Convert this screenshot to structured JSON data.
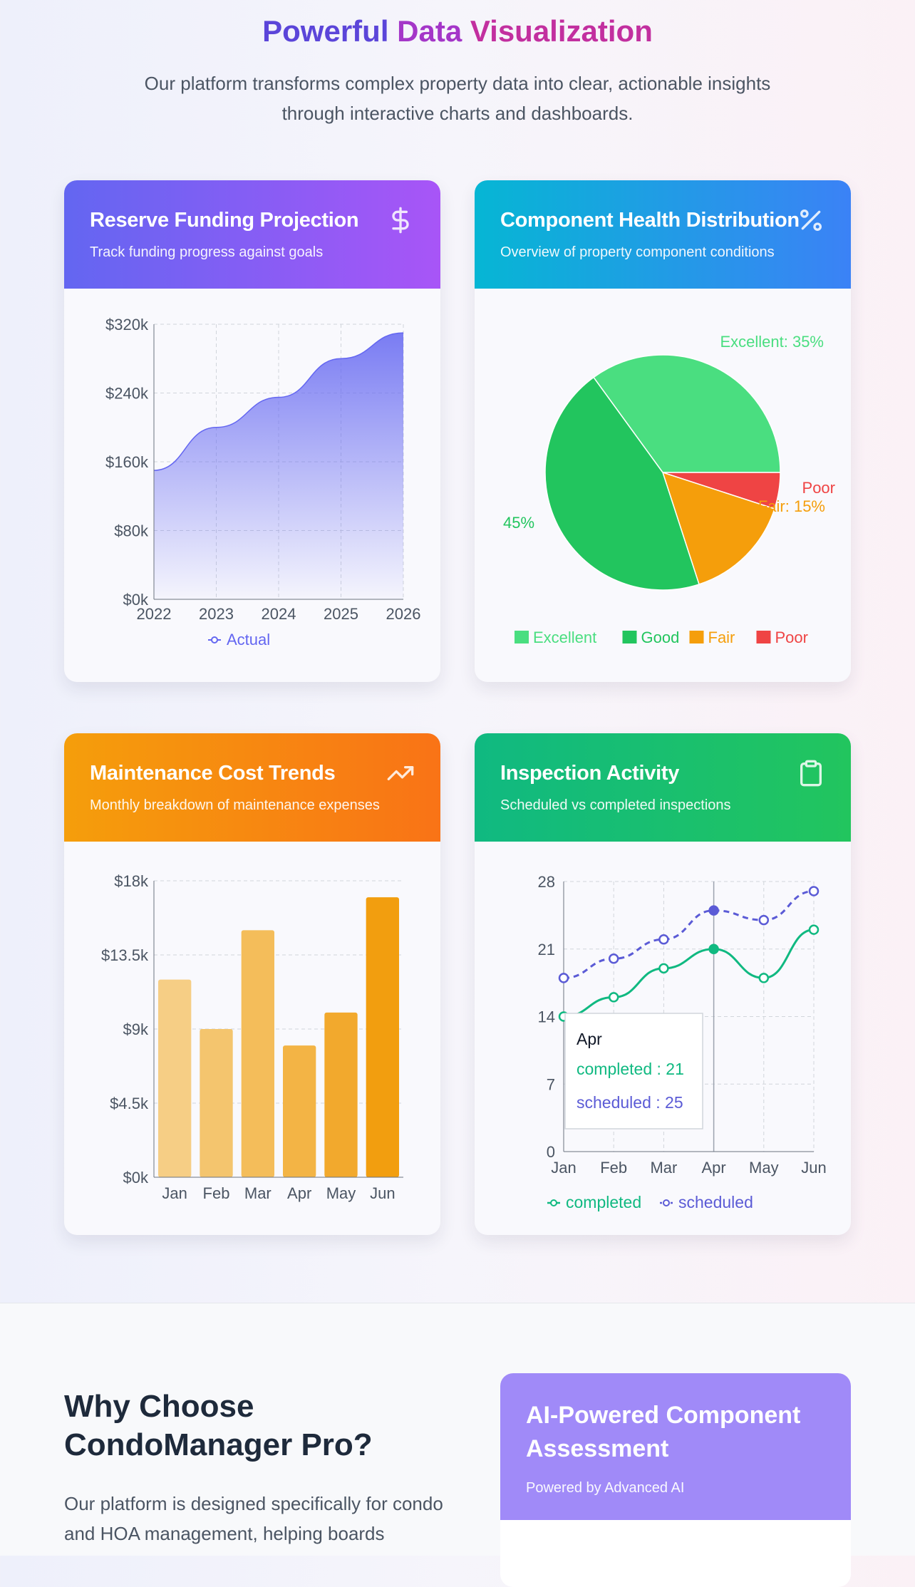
{
  "hero": {
    "title_part1": "Powerful",
    "title_part2": "Data",
    "title_part3": "Visualization",
    "intro": "Our platform transforms complex property data into clear, actionable insights through interactive charts and dashboards."
  },
  "cards": {
    "reserve": {
      "title": "Reserve Funding Projection",
      "subtitle": "Track funding progress against goals",
      "icon": "dollar-icon"
    },
    "health": {
      "title": "Component Health Distribution",
      "subtitle": "Overview of property component conditions",
      "icon": "percent-icon"
    },
    "maintenance": {
      "title": "Maintenance Cost Trends",
      "subtitle": "Monthly breakdown of maintenance expenses",
      "icon": "trending-up-icon"
    },
    "inspection": {
      "title": "Inspection Activity",
      "subtitle": "Scheduled vs completed inspections",
      "icon": "clipboard-icon"
    }
  },
  "chart_data": [
    {
      "type": "area",
      "title": "Reserve Funding Projection",
      "x": [
        "2022",
        "2023",
        "2024",
        "2025",
        "2026"
      ],
      "y_ticks": [
        "$0k",
        "$80k",
        "$160k",
        "$240k",
        "$320k"
      ],
      "ylim": [
        0,
        320
      ],
      "grid": true,
      "legend": "bottom",
      "series": [
        {
          "name": "Actual",
          "values": [
            150,
            200,
            235,
            280,
            310
          ]
        }
      ],
      "color": "#6366f1"
    },
    {
      "type": "pie",
      "title": "Component Health Distribution",
      "slices": [
        {
          "name": "Excellent",
          "value": 35,
          "label": "Excellent: 35%",
          "color": "#4ade80"
        },
        {
          "name": "Poor",
          "value": 5,
          "label": "Poor",
          "color": "#ef4444"
        },
        {
          "name": "Fair",
          "value": 15,
          "label": "Fair: 15%",
          "color": "#f59e0b"
        },
        {
          "name": "Good",
          "value": 45,
          "label": "45%",
          "color": "#22c55e"
        }
      ],
      "legend": [
        "Excellent",
        "Good",
        "Fair",
        "Poor"
      ],
      "legend_placement": "bottom"
    },
    {
      "type": "bar",
      "title": "Maintenance Cost Trends",
      "categories": [
        "Jan",
        "Feb",
        "Mar",
        "Apr",
        "May",
        "Jun"
      ],
      "values": [
        12000,
        9000,
        15000,
        8000,
        10000,
        17000
      ],
      "y_ticks": [
        "$0k",
        "$4.5k",
        "$9k",
        "$13.5k",
        "$18k"
      ],
      "ylim": [
        0,
        18000
      ],
      "grid": true,
      "colors": [
        "#f6ce85",
        "#f4c56e",
        "#f4bd5a",
        "#f3b445",
        "#f2a92d",
        "#f29e0f"
      ]
    },
    {
      "type": "line",
      "title": "Inspection Activity",
      "categories": [
        "Jan",
        "Feb",
        "Mar",
        "Apr",
        "May",
        "Jun"
      ],
      "y_ticks": [
        "0",
        "7",
        "14",
        "21",
        "28"
      ],
      "ylim": [
        0,
        28
      ],
      "grid": true,
      "legend": "bottom",
      "series": [
        {
          "name": "completed",
          "values": [
            14,
            16,
            19,
            21,
            18,
            23
          ],
          "color": "#10b981"
        },
        {
          "name": "scheduled",
          "values": [
            18,
            20,
            22,
            25,
            24,
            27
          ],
          "color": "#5b5bd6"
        }
      ],
      "tooltip": {
        "title": "Apr",
        "line1": "completed : 21",
        "line2": "scheduled : 25"
      }
    }
  ],
  "why": {
    "title": "Why Choose CondoManager Pro?",
    "text": "Our platform is designed specifically for condo and HOA management, helping boards"
  },
  "ai_card": {
    "title": "AI-Powered Component Assessment",
    "subtitle": "Powered by Advanced AI"
  }
}
